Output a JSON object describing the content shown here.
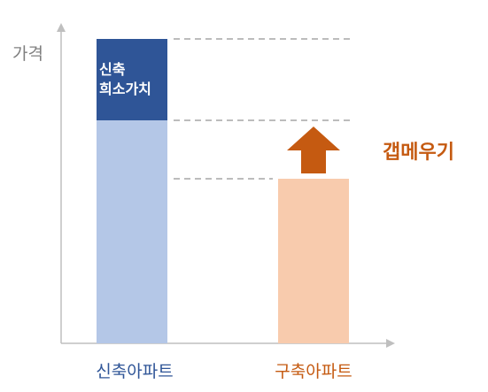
{
  "y_axis_label": "가격",
  "new_apartment": {
    "label": "신축아파트",
    "premium_label_line1": "신축",
    "premium_label_line2": "희소가치"
  },
  "old_apartment": {
    "label": "구축아파트"
  },
  "gap_label": "갭메우기",
  "colors": {
    "premium_segment": "#2f5597",
    "new_base": "#b4c7e7",
    "old_bar": "#f8cbad",
    "arrow": "#c55a11",
    "gap_text": "#c55a11",
    "axis": "#bfbfbf",
    "dashed_line": "#a6a6a6"
  }
}
